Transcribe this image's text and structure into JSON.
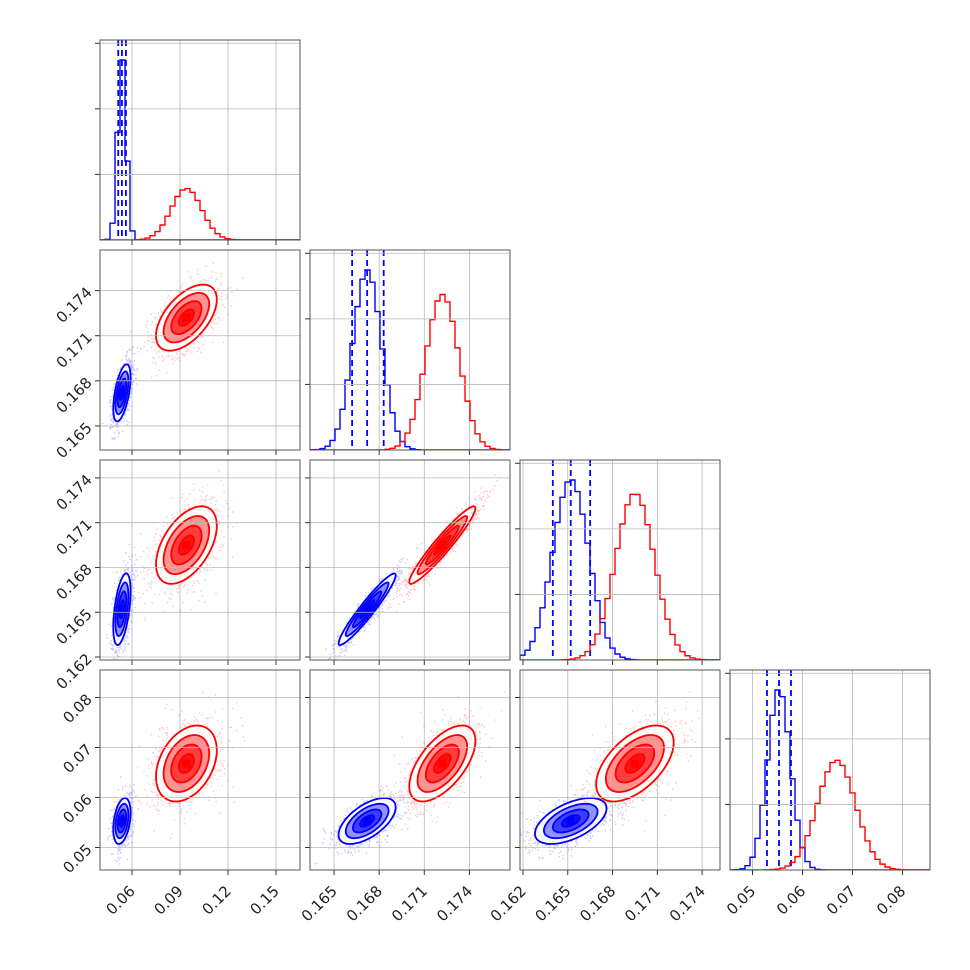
{
  "chart_data": {
    "type": "corner",
    "grid": true,
    "series": [
      {
        "color": "#0000ff",
        "mean": [
          0.0537,
          0.1672,
          0.1652,
          0.0553
        ],
        "std": [
          0.0027,
          0.00095,
          0.0012,
          0.0023
        ],
        "quantiles_shown": [
          [
            0.0514,
            0.0537,
            0.0562
          ],
          [
            0.1662,
            0.1672,
            0.1683
          ],
          [
            0.164,
            0.1652,
            0.1665
          ],
          [
            0.0529,
            0.0553,
            0.0577
          ]
        ],
        "correlation": [
          [
            1.0,
            0.55,
            0.5,
            0.35
          ],
          [
            0.55,
            1.0,
            0.95,
            0.6
          ],
          [
            0.5,
            0.95,
            1.0,
            0.55
          ],
          [
            0.35,
            0.6,
            0.55,
            1.0
          ]
        ]
      },
      {
        "color": "#ff0000",
        "mean": [
          0.094,
          0.1722,
          0.1695,
          0.0668
        ],
        "std": [
          0.0095,
          0.0011,
          0.0013,
          0.0038
        ],
        "quantiles_shown": [],
        "correlation": [
          [
            1.0,
            0.55,
            0.5,
            0.35
          ],
          [
            0.55,
            1.0,
            0.95,
            0.6
          ],
          [
            0.5,
            0.95,
            1.0,
            0.55
          ],
          [
            0.35,
            0.6,
            0.55,
            1.0
          ]
        ]
      }
    ],
    "params": [
      {
        "range": [
          0.04,
          0.165
        ],
        "ticks": [
          0.06,
          0.09,
          0.12,
          0.15
        ],
        "tick_labels": [
          "0.06",
          "0.09",
          "0.12",
          "0.15"
        ]
      },
      {
        "range": [
          0.1634,
          0.1767
        ],
        "ticks": [
          0.165,
          0.168,
          0.171,
          0.174
        ],
        "tick_labels": [
          "0.165",
          "0.168",
          "0.171",
          "0.174"
        ]
      },
      {
        "range": [
          0.1618,
          0.1752
        ],
        "ticks": [
          0.162,
          0.165,
          0.168,
          0.171,
          0.174
        ],
        "tick_labels": [
          "0.162",
          "0.165",
          "0.168",
          "0.171",
          "0.174"
        ]
      },
      {
        "range": [
          0.0455,
          0.0855
        ],
        "ticks": [
          0.05,
          0.06,
          0.07,
          0.08
        ],
        "tick_labels": [
          "0.05",
          "0.06",
          "0.07",
          "0.08"
        ]
      }
    ],
    "histogram_bins": 20,
    "contour_levels_sigma": [
      0.5,
      1.0,
      1.5,
      2.0
    ]
  }
}
